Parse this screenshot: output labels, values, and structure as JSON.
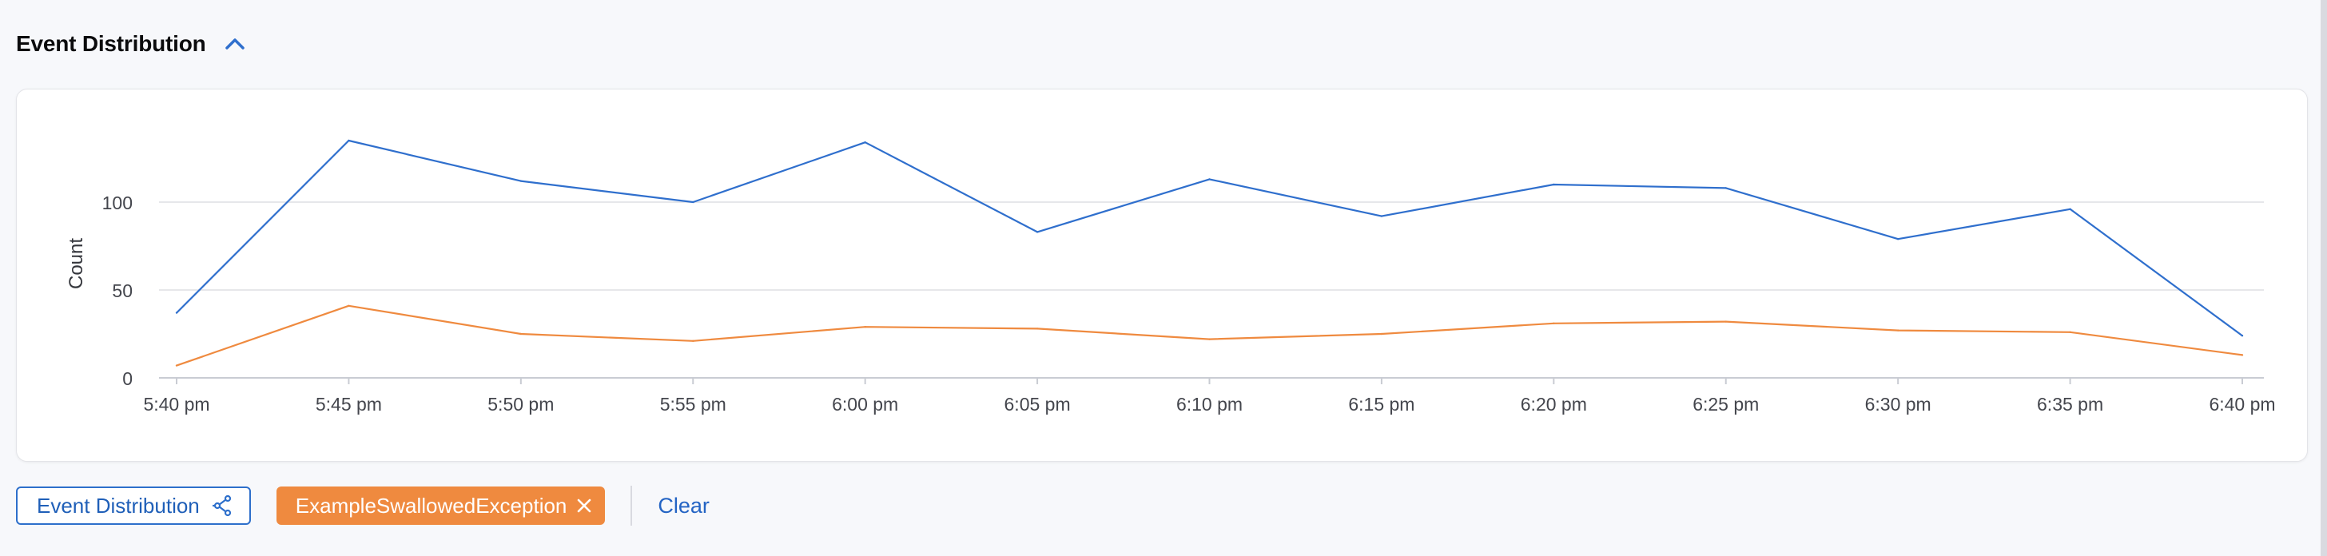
{
  "section": {
    "title": "Event Distribution"
  },
  "chart_data": {
    "type": "line",
    "title": "",
    "xlabel": "",
    "ylabel": "Count",
    "ylim": [
      0,
      150
    ],
    "yticks": [
      0,
      50,
      100
    ],
    "grid": true,
    "categories": [
      "5:40 pm",
      "5:45 pm",
      "5:50 pm",
      "5:55 pm",
      "6:00 pm",
      "6:05 pm",
      "6:10 pm",
      "6:15 pm",
      "6:20 pm",
      "6:25 pm",
      "6:30 pm",
      "6:35 pm",
      "6:40 pm"
    ],
    "series": [
      {
        "color": "#2f6fcd",
        "values": [
          37,
          135,
          112,
          100,
          134,
          83,
          113,
          92,
          110,
          108,
          79,
          96,
          24
        ]
      },
      {
        "color": "#ef8a3f",
        "values": [
          7,
          41,
          25,
          21,
          29,
          28,
          22,
          25,
          31,
          32,
          27,
          26,
          13
        ]
      }
    ]
  },
  "footer": {
    "distribution_button": "Event Distribution",
    "filter_tag": "ExampleSwallowedException",
    "clear_label": "Clear"
  },
  "colors": {
    "accent": "#2f6fcd",
    "tag": "#ef8a3f"
  }
}
